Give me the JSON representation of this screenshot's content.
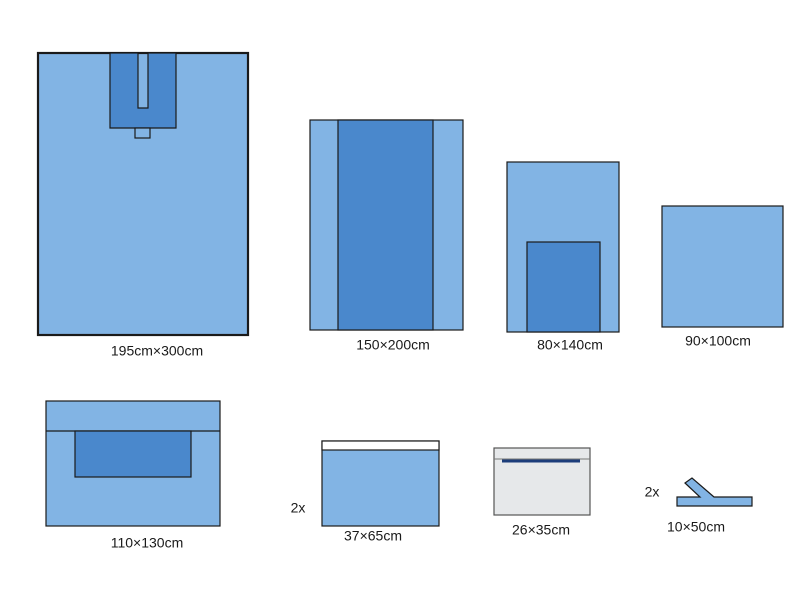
{
  "items": [
    {
      "label": "195cm×300cm"
    },
    {
      "label": "150×200cm"
    },
    {
      "label": "80×140cm"
    },
    {
      "label": "90×100cm"
    },
    {
      "label": "110×130cm"
    },
    {
      "label": "37×65cm",
      "quantity": "2x"
    },
    {
      "label": "26×35cm"
    },
    {
      "label": "10×50cm",
      "quantity": "2x"
    }
  ]
}
